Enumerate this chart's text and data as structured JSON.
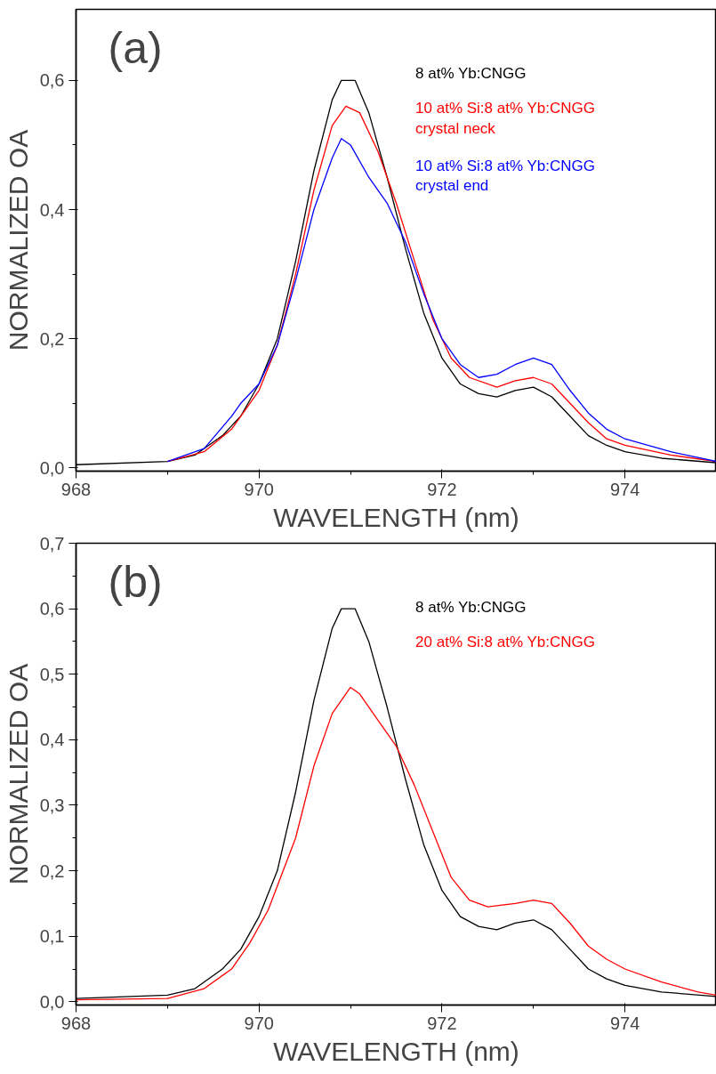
{
  "chart_data": [
    {
      "type": "line",
      "xlabel": "WAVELENGTH (nm)",
      "ylabel": "NORMALIZED OA",
      "annotations": [
        "(a)"
      ],
      "xlim": [
        968,
        975
      ],
      "ylim": [
        -0.005,
        0.71
      ],
      "xticks": [
        968,
        970,
        972,
        974
      ],
      "yticks": [
        {
          "value": 0,
          "label": "0,0"
        },
        {
          "value": 0.2,
          "label": "0,2"
        },
        {
          "value": 0.4,
          "label": "0,4"
        },
        {
          "value": 0.6,
          "label": "0,6"
        }
      ],
      "grid": false,
      "marker": "none",
      "line_style": "solid",
      "series": [
        {
          "name": "8 at% Yb:CNGG",
          "color": "#000000",
          "x": [
            968,
            969,
            969.3,
            969.6,
            969.8,
            970.0,
            970.2,
            970.4,
            970.6,
            970.8,
            970.9,
            971.05,
            971.2,
            971.4,
            971.6,
            971.8,
            972.0,
            972.2,
            972.4,
            972.6,
            972.8,
            973.0,
            973.2,
            973.4,
            973.6,
            973.8,
            974.0,
            974.4,
            975
          ],
          "values": [
            0.005,
            0.01,
            0.02,
            0.05,
            0.08,
            0.13,
            0.2,
            0.32,
            0.46,
            0.57,
            0.6,
            0.6,
            0.55,
            0.45,
            0.34,
            0.24,
            0.17,
            0.13,
            0.115,
            0.11,
            0.12,
            0.125,
            0.11,
            0.08,
            0.05,
            0.035,
            0.025,
            0.015,
            0.008
          ]
        },
        {
          "name": "10 at% Si:8 at% Yb:CNGG\ncrystal neck",
          "color": "#ff0000",
          "x": [
            969,
            969.4,
            969.7,
            970.0,
            970.2,
            970.4,
            970.6,
            970.8,
            970.95,
            971.1,
            971.3,
            971.5,
            971.7,
            971.9,
            972.1,
            972.3,
            972.6,
            972.8,
            973.0,
            973.2,
            973.4,
            973.6,
            973.8,
            974.0,
            974.5,
            975
          ],
          "values": [
            0.01,
            0.025,
            0.06,
            0.12,
            0.19,
            0.3,
            0.43,
            0.53,
            0.56,
            0.55,
            0.49,
            0.41,
            0.32,
            0.23,
            0.17,
            0.14,
            0.125,
            0.135,
            0.14,
            0.13,
            0.1,
            0.07,
            0.045,
            0.035,
            0.02,
            0.01
          ]
        },
        {
          "name": "10 at% Si:8 at% Yb:CNGG\ncrystal end",
          "color": "#0000ff",
          "x": [
            969,
            969.4,
            969.7,
            969.8,
            970.0,
            970.2,
            970.4,
            970.6,
            970.8,
            970.9,
            971.0,
            971.2,
            971.4,
            971.6,
            971.8,
            972.0,
            972.2,
            972.4,
            972.6,
            972.8,
            973.0,
            973.2,
            973.4,
            973.6,
            973.8,
            974.0,
            974.5,
            975
          ],
          "values": [
            0.01,
            0.03,
            0.08,
            0.1,
            0.13,
            0.19,
            0.29,
            0.4,
            0.48,
            0.51,
            0.5,
            0.45,
            0.41,
            0.35,
            0.27,
            0.2,
            0.16,
            0.14,
            0.145,
            0.16,
            0.17,
            0.16,
            0.12,
            0.085,
            0.06,
            0.045,
            0.025,
            0.01
          ]
        }
      ]
    },
    {
      "type": "line",
      "xlabel": "WAVELENGTH (nm)",
      "ylabel": "NORMALIZED OA",
      "annotations": [
        "(b)"
      ],
      "xlim": [
        968,
        975
      ],
      "ylim": [
        -0.005,
        0.7
      ],
      "xticks": [
        968,
        970,
        972,
        974
      ],
      "yticks": [
        {
          "value": 0,
          "label": "0,0"
        },
        {
          "value": 0.1,
          "label": "0,1"
        },
        {
          "value": 0.2,
          "label": "0,2"
        },
        {
          "value": 0.3,
          "label": "0,3"
        },
        {
          "value": 0.4,
          "label": "0,4"
        },
        {
          "value": 0.5,
          "label": "0,5"
        },
        {
          "value": 0.6,
          "label": "0,6"
        },
        {
          "value": 0.7,
          "label": "0,7"
        }
      ],
      "grid": false,
      "marker": "none",
      "line_style": "solid",
      "series": [
        {
          "name": "8 at% Yb:CNGG",
          "color": "#000000",
          "x": [
            968,
            969,
            969.3,
            969.6,
            969.8,
            970.0,
            970.2,
            970.4,
            970.6,
            970.8,
            970.9,
            971.05,
            971.2,
            971.4,
            971.6,
            971.8,
            972.0,
            972.2,
            972.4,
            972.6,
            972.8,
            973.0,
            973.2,
            973.4,
            973.6,
            973.8,
            974.0,
            974.4,
            975
          ],
          "values": [
            0.005,
            0.01,
            0.02,
            0.05,
            0.08,
            0.13,
            0.2,
            0.32,
            0.46,
            0.57,
            0.6,
            0.6,
            0.55,
            0.45,
            0.34,
            0.24,
            0.17,
            0.13,
            0.115,
            0.11,
            0.12,
            0.125,
            0.11,
            0.08,
            0.05,
            0.035,
            0.025,
            0.015,
            0.008
          ]
        },
        {
          "name": "20 at% Si:8 at% Yb:CNGG",
          "color": "#ff0000",
          "x": [
            968,
            969,
            969.4,
            969.7,
            969.9,
            970.1,
            970.4,
            970.6,
            970.8,
            971.0,
            971.1,
            971.3,
            971.5,
            971.7,
            971.9,
            972.1,
            972.3,
            972.5,
            972.8,
            973.0,
            973.2,
            973.4,
            973.6,
            973.8,
            974.0,
            974.4,
            974.8,
            975
          ],
          "values": [
            0.003,
            0.005,
            0.02,
            0.05,
            0.09,
            0.14,
            0.25,
            0.36,
            0.44,
            0.48,
            0.47,
            0.43,
            0.39,
            0.33,
            0.26,
            0.19,
            0.155,
            0.145,
            0.15,
            0.155,
            0.15,
            0.12,
            0.085,
            0.065,
            0.05,
            0.03,
            0.015,
            0.01
          ]
        }
      ]
    }
  ]
}
